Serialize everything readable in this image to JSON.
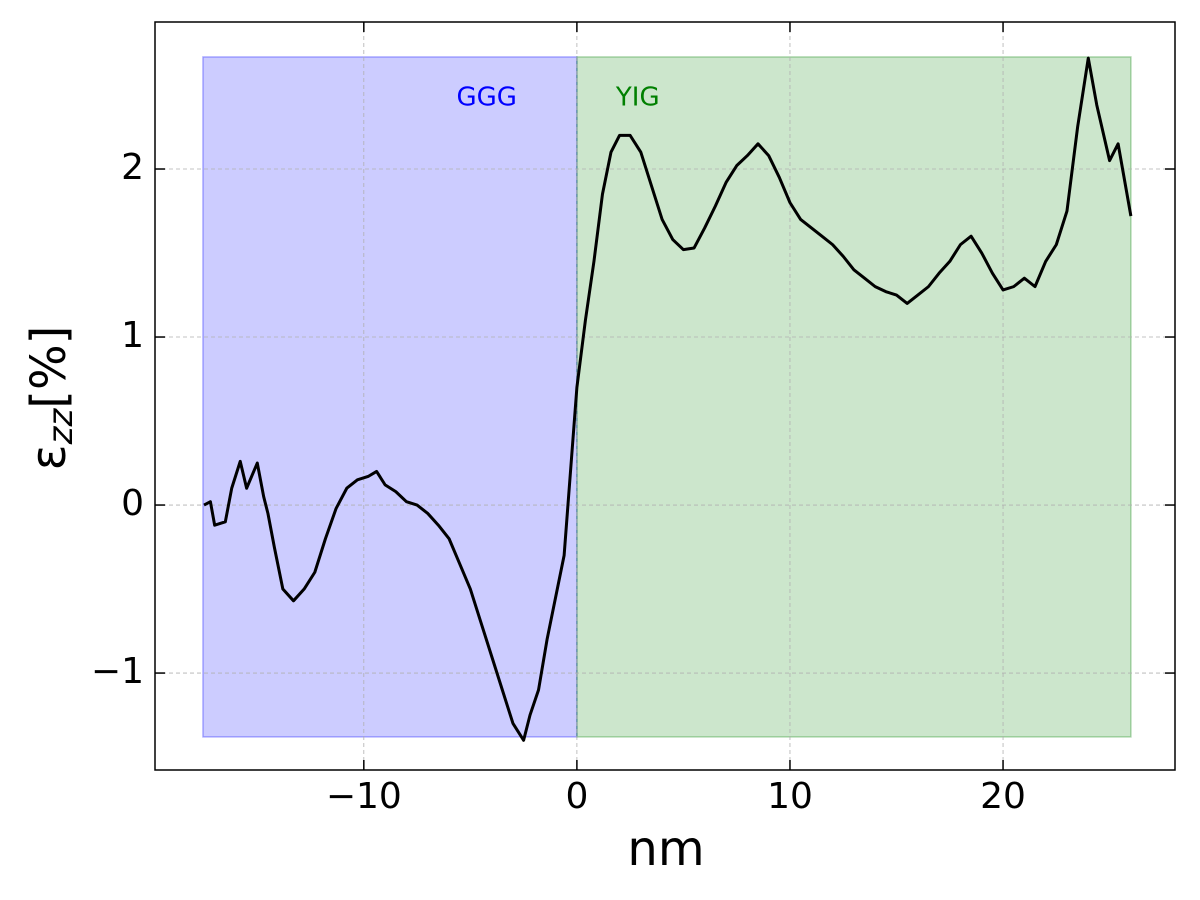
{
  "chart_data": {
    "type": "line",
    "xlabel": "nm",
    "ylabel": {
      "symbol": "ε",
      "subscript": "zz",
      "unit": "[%]"
    },
    "xlim": [
      -19.8,
      28.07
    ],
    "ylim": [
      -1.577,
      2.875
    ],
    "xticks": [
      {
        "value": -10,
        "label": "−10"
      },
      0,
      10,
      20
    ],
    "yticks": [
      {
        "value": -1,
        "label": "−1"
      },
      0,
      1,
      2
    ],
    "grid": true,
    "regions": [
      {
        "label": "GGG",
        "color": "#0000ff",
        "xlim": [
          -17.55,
          0
        ],
        "ylim": [
          -1.38,
          2.667
        ]
      },
      {
        "label": "YIG",
        "color": "#008000",
        "xlim": [
          0,
          26.0
        ],
        "ylim": [
          -1.38,
          2.667
        ]
      }
    ],
    "color": "#000000",
    "x": [
      -17.5,
      -17.2,
      -17.0,
      -16.5,
      -16.2,
      -15.8,
      -15.5,
      -15.0,
      -14.7,
      -14.5,
      -14.2,
      -13.8,
      -13.3,
      -12.8,
      -12.3,
      -11.8,
      -11.3,
      -10.8,
      -10.3,
      -9.8,
      -9.4,
      -9.0,
      -8.5,
      -8.0,
      -7.5,
      -7.0,
      -6.5,
      -6.0,
      -5.5,
      -5.0,
      -4.5,
      -4.0,
      -3.5,
      -3.0,
      -2.5,
      -2.2,
      -1.8,
      -1.4,
      -1.0,
      -0.6,
      -0.3,
      0.0,
      0.4,
      0.8,
      1.2,
      1.6,
      2.0,
      2.5,
      3.0,
      3.5,
      4.0,
      4.5,
      5.0,
      5.5,
      6.0,
      6.5,
      7.0,
      7.5,
      8.0,
      8.5,
      9.0,
      9.5,
      10.0,
      10.5,
      11.0,
      11.5,
      12.0,
      12.5,
      13.0,
      13.5,
      14.0,
      14.5,
      15.0,
      15.5,
      16.0,
      16.5,
      17.0,
      17.5,
      18.0,
      18.5,
      19.0,
      19.5,
      20.0,
      20.5,
      21.0,
      21.5,
      22.0,
      22.5,
      23.0,
      23.5,
      24.0,
      24.4,
      25.0,
      25.4,
      26.0
    ],
    "values": [
      0.0,
      0.02,
      -0.12,
      -0.1,
      0.1,
      0.26,
      0.1,
      0.25,
      0.05,
      -0.05,
      -0.25,
      -0.5,
      -0.57,
      -0.5,
      -0.4,
      -0.2,
      -0.02,
      0.1,
      0.15,
      0.17,
      0.2,
      0.12,
      0.08,
      0.02,
      0.0,
      -0.05,
      -0.12,
      -0.2,
      -0.35,
      -0.5,
      -0.7,
      -0.9,
      -1.1,
      -1.3,
      -1.4,
      -1.25,
      -1.1,
      -0.8,
      -0.55,
      -0.3,
      0.2,
      0.7,
      1.1,
      1.45,
      1.85,
      2.1,
      2.2,
      2.2,
      2.1,
      1.9,
      1.7,
      1.58,
      1.52,
      1.53,
      1.65,
      1.78,
      1.92,
      2.02,
      2.08,
      2.15,
      2.08,
      1.95,
      1.8,
      1.7,
      1.65,
      1.6,
      1.55,
      1.48,
      1.4,
      1.35,
      1.3,
      1.27,
      1.25,
      1.2,
      1.25,
      1.3,
      1.38,
      1.45,
      1.55,
      1.6,
      1.5,
      1.38,
      1.28,
      1.3,
      1.35,
      1.3,
      1.45,
      1.55,
      1.75,
      2.25,
      2.66,
      2.38,
      2.05,
      2.15,
      1.72
    ]
  }
}
